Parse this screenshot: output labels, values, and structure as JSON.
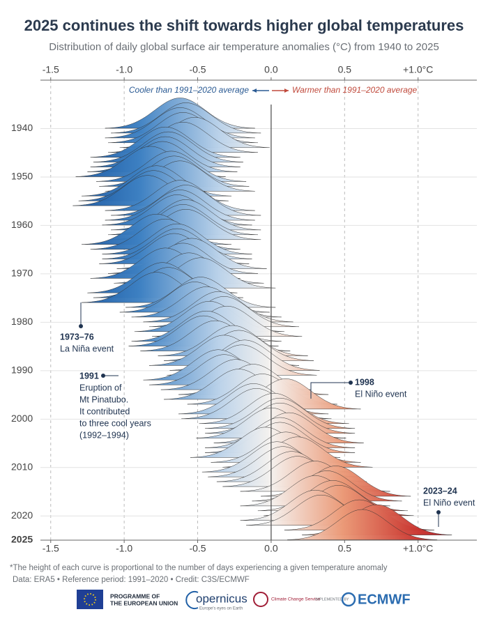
{
  "chart_data": {
    "type": "ridgeline",
    "title": "2025 continues the shift towards higher global temperatures",
    "subtitle": "Distribution of daily global surface air temperature anomalies (°C) from 1940 to 2025",
    "cooler_label": "Cooler than 1991–2020 average",
    "warmer_label": "Warmer than 1991–2020 average",
    "years": [
      1940,
      1941,
      1942,
      1943,
      1944,
      1945,
      1946,
      1947,
      1948,
      1949,
      1950,
      1951,
      1952,
      1953,
      1954,
      1955,
      1956,
      1957,
      1958,
      1959,
      1960,
      1961,
      1962,
      1963,
      1964,
      1965,
      1966,
      1967,
      1968,
      1969,
      1970,
      1971,
      1972,
      1973,
      1974,
      1975,
      1976,
      1977,
      1978,
      1979,
      1980,
      1981,
      1982,
      1983,
      1984,
      1985,
      1986,
      1987,
      1988,
      1989,
      1990,
      1991,
      1992,
      1993,
      1994,
      1995,
      1996,
      1997,
      1998,
      1999,
      2000,
      2001,
      2002,
      2003,
      2004,
      2005,
      2006,
      2007,
      2008,
      2009,
      2010,
      2011,
      2012,
      2013,
      2014,
      2015,
      2016,
      2017,
      2018,
      2019,
      2020,
      2021,
      2022,
      2023,
      2024,
      2025
    ],
    "values": [
      -0.62,
      -0.58,
      -0.62,
      -0.6,
      -0.52,
      -0.6,
      -0.72,
      -0.7,
      -0.72,
      -0.74,
      -0.82,
      -0.68,
      -0.66,
      -0.62,
      -0.78,
      -0.8,
      -0.84,
      -0.62,
      -0.58,
      -0.62,
      -0.64,
      -0.58,
      -0.6,
      -0.58,
      -0.78,
      -0.72,
      -0.64,
      -0.64,
      -0.66,
      -0.54,
      -0.6,
      -0.72,
      -0.56,
      -0.48,
      -0.74,
      -0.7,
      -0.78,
      -0.48,
      -0.52,
      -0.44,
      -0.36,
      -0.32,
      -0.42,
      -0.3,
      -0.44,
      -0.46,
      -0.38,
      -0.26,
      -0.22,
      -0.32,
      -0.18,
      -0.2,
      -0.36,
      -0.32,
      -0.24,
      -0.12,
      -0.22,
      -0.06,
      0.1,
      -0.12,
      -0.1,
      0.02,
      0.06,
      0.06,
      0.0,
      0.12,
      0.06,
      0.06,
      -0.04,
      0.1,
      0.18,
      0.04,
      0.08,
      0.14,
      0.18,
      0.3,
      0.44,
      0.38,
      0.3,
      0.42,
      0.46,
      0.3,
      0.34,
      0.6,
      0.72,
      0.62
    ],
    "xlim": [
      -1.57,
      1.4
    ],
    "xticks": [
      -1.5,
      {
        "value": -1.0,
        "label": "-1.0"
      },
      -0.5,
      {
        "value": 0.0,
        "label": "0.0"
      },
      0.5,
      {
        "value": 1.0,
        "label": "+1.0°C"
      }
    ],
    "ylim": [
      1930,
      2025
    ],
    "yticks": [
      1940,
      1950,
      1960,
      1970,
      1980,
      1990,
      2000,
      2010,
      2020,
      2025
    ],
    "annotations": [
      {
        "title": "1973–76",
        "lines": [
          "La Niña event"
        ]
      },
      {
        "title": "1991",
        "lines": [
          "Eruption of",
          "Mt Pinatubo.",
          "It contributed",
          "to three cool years",
          "(1992–1994)"
        ]
      },
      {
        "title": "1998",
        "lines": [
          "El Niño event"
        ]
      },
      {
        "title": "2023–24",
        "lines": [
          "El Niño event"
        ]
      }
    ],
    "footnote": "*The height of each curve is proportional to the number of days experiencing a given temperature anomaly",
    "source": "Data: ERA5 • Reference period: 1991–2020 • Credit: C3S/ECMWF"
  },
  "footer": {
    "eu_line1": "PROGRAMME OF",
    "eu_line2": "THE EUROPEAN UNION",
    "copernicus": "opernicus",
    "copernicus_sub": "Europe's eyes on Earth",
    "c3s": "Climate Change Service",
    "implemented": "IMPLEMENTED BY",
    "ecmwf": "ECMWF"
  }
}
